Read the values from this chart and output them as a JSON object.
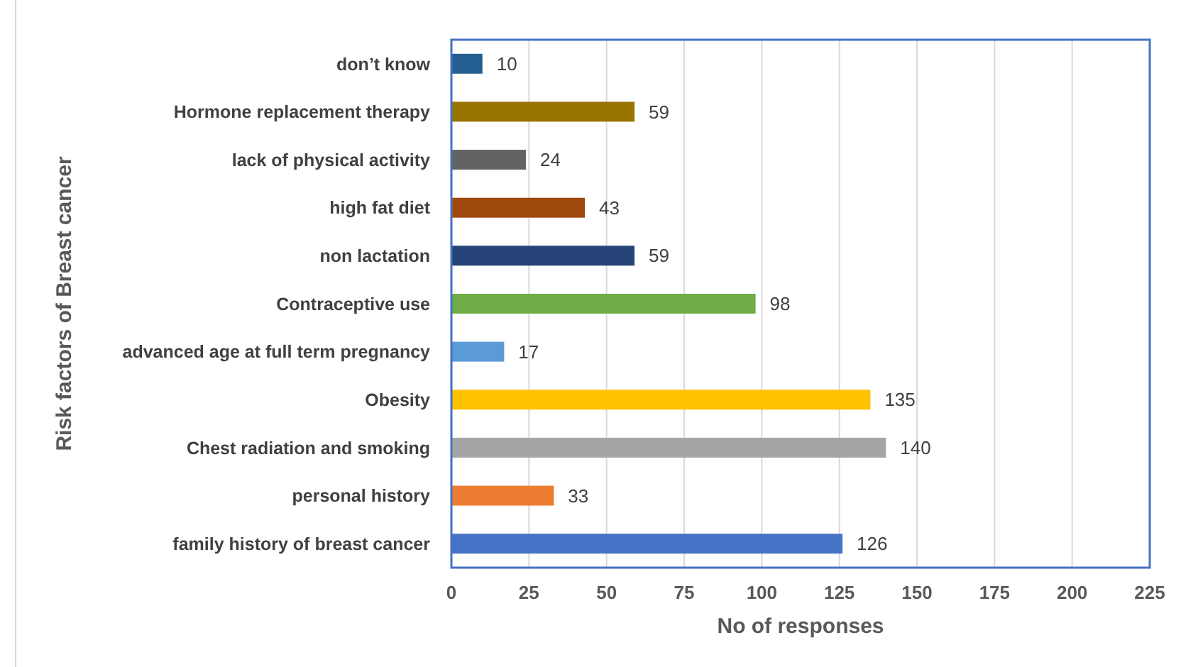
{
  "chart_data": {
    "type": "bar",
    "orientation": "horizontal",
    "xlabel": "No of responses",
    "ylabel": "Risk factors of Breast cancer",
    "categories": [
      "don’t know",
      "Hormone replacement therapy",
      "lack of physical activity",
      "high fat diet",
      "non lactation",
      "Contraceptive use",
      "advanced age at full term pregnancy",
      "Obesity",
      "Chest radiation and smoking",
      "personal history ",
      "family history of breast cancer"
    ],
    "values": [
      10,
      59,
      24,
      43,
      59,
      98,
      17,
      135,
      140,
      33,
      126
    ],
    "colors": [
      "#255e91",
      "#997300",
      "#636363",
      "#9e480e",
      "#264478",
      "#70ad47",
      "#5b9bd5",
      "#ffc000",
      "#a5a5a5",
      "#ed7d31",
      "#4472c4"
    ],
    "xlim": [
      0,
      225
    ],
    "xticks": [
      0,
      25,
      50,
      75,
      100,
      125,
      150,
      175,
      200,
      225
    ],
    "grid": "x",
    "data_labels": true
  }
}
